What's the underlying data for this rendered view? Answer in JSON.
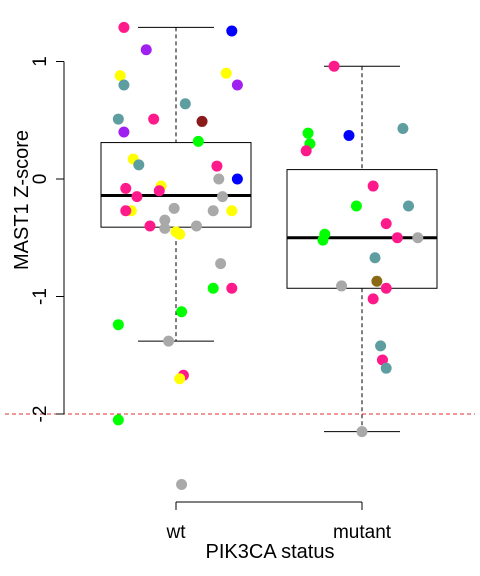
{
  "chart_data": {
    "type": "box",
    "xlabel": "PIK3CA status",
    "ylabel": "MAST1 Z-score",
    "categories": [
      "wt",
      "mutant"
    ],
    "yticks": [
      1,
      0,
      -1,
      -2
    ],
    "ytick_labels": [
      "1",
      "0",
      "-1",
      "-2"
    ],
    "ylim": [
      -2.6,
      1.4
    ],
    "reference_line": {
      "y": -2,
      "color": "#e03030",
      "style": "dashed"
    },
    "boxes": [
      {
        "category": "wt",
        "whisker_low": -1.38,
        "q1": -0.41,
        "median": -0.14,
        "q3": 0.31,
        "whisker_high": 1.29
      },
      {
        "category": "mutant",
        "whisker_low": -2.15,
        "q1": -0.93,
        "median": -0.5,
        "q3": 0.08,
        "whisker_high": 0.96
      }
    ],
    "points": [
      {
        "group": "wt",
        "x": 0.72,
        "y": 1.29,
        "color": "#ff1a8c"
      },
      {
        "group": "wt",
        "x": 1.3,
        "y": 1.26,
        "color": "#0000ff"
      },
      {
        "group": "wt",
        "x": 0.84,
        "y": 1.1,
        "color": "#a020f0"
      },
      {
        "group": "wt",
        "x": 0.7,
        "y": 0.88,
        "color": "#ffff00"
      },
      {
        "group": "wt",
        "x": 1.27,
        "y": 0.9,
        "color": "#ffff00"
      },
      {
        "group": "wt",
        "x": 0.72,
        "y": 0.8,
        "color": "#5f9ea0"
      },
      {
        "group": "wt",
        "x": 1.33,
        "y": 0.8,
        "color": "#a020f0"
      },
      {
        "group": "wt",
        "x": 1.05,
        "y": 0.64,
        "color": "#5f9ea0"
      },
      {
        "group": "wt",
        "x": 0.69,
        "y": 0.51,
        "color": "#5f9ea0"
      },
      {
        "group": "wt",
        "x": 0.88,
        "y": 0.51,
        "color": "#ff1a8c"
      },
      {
        "group": "wt",
        "x": 1.14,
        "y": 0.49,
        "color": "#8b1a1a"
      },
      {
        "group": "wt",
        "x": 0.72,
        "y": 0.4,
        "color": "#a020f0"
      },
      {
        "group": "wt",
        "x": 1.12,
        "y": 0.32,
        "color": "#00ff00"
      },
      {
        "group": "wt",
        "x": 0.77,
        "y": 0.17,
        "color": "#ffff00"
      },
      {
        "group": "wt",
        "x": 0.8,
        "y": 0.12,
        "color": "#5f9ea0"
      },
      {
        "group": "wt",
        "x": 1.22,
        "y": 0.11,
        "color": "#ff1a8c"
      },
      {
        "group": "wt",
        "x": 1.33,
        "y": 0.0,
        "color": "#0000ff"
      },
      {
        "group": "wt",
        "x": 1.23,
        "y": 0.0,
        "color": "#a9a9a9"
      },
      {
        "group": "wt",
        "x": 0.73,
        "y": -0.08,
        "color": "#ff1a8c"
      },
      {
        "group": "wt",
        "x": 0.92,
        "y": -0.06,
        "color": "#ffff00"
      },
      {
        "group": "wt",
        "x": 0.91,
        "y": -0.1,
        "color": "#ff1a8c"
      },
      {
        "group": "wt",
        "x": 0.79,
        "y": -0.15,
        "color": "#ff1a8c"
      },
      {
        "group": "wt",
        "x": 1.25,
        "y": -0.15,
        "color": "#a9a9a9"
      },
      {
        "group": "wt",
        "x": 0.76,
        "y": -0.27,
        "color": "#ffff00"
      },
      {
        "group": "wt",
        "x": 0.73,
        "y": -0.27,
        "color": "#ff1a8c"
      },
      {
        "group": "wt",
        "x": 0.99,
        "y": -0.25,
        "color": "#a9a9a9"
      },
      {
        "group": "wt",
        "x": 1.2,
        "y": -0.27,
        "color": "#a9a9a9"
      },
      {
        "group": "wt",
        "x": 1.3,
        "y": -0.27,
        "color": "#ffff00"
      },
      {
        "group": "wt",
        "x": 0.94,
        "y": -0.35,
        "color": "#a9a9a9"
      },
      {
        "group": "wt",
        "x": 0.86,
        "y": -0.4,
        "color": "#ff1a8c"
      },
      {
        "group": "wt",
        "x": 0.94,
        "y": -0.42,
        "color": "#a9a9a9"
      },
      {
        "group": "wt",
        "x": 1.0,
        "y": -0.45,
        "color": "#ffff00"
      },
      {
        "group": "wt",
        "x": 1.02,
        "y": -0.47,
        "color": "#ffff00"
      },
      {
        "group": "wt",
        "x": 1.11,
        "y": -0.4,
        "color": "#a9a9a9"
      },
      {
        "group": "wt",
        "x": 1.24,
        "y": -0.72,
        "color": "#a9a9a9"
      },
      {
        "group": "wt",
        "x": 1.2,
        "y": -0.93,
        "color": "#00ff00"
      },
      {
        "group": "wt",
        "x": 1.3,
        "y": -0.93,
        "color": "#ff1a8c"
      },
      {
        "group": "wt",
        "x": 1.03,
        "y": -1.13,
        "color": "#00ff00"
      },
      {
        "group": "wt",
        "x": 0.69,
        "y": -1.24,
        "color": "#00ff00"
      },
      {
        "group": "wt",
        "x": 0.96,
        "y": -1.38,
        "color": "#a9a9a9"
      },
      {
        "group": "wt",
        "x": 1.04,
        "y": -1.67,
        "color": "#ff1a8c"
      },
      {
        "group": "wt",
        "x": 1.02,
        "y": -1.7,
        "color": "#ffff00"
      },
      {
        "group": "wt",
        "x": 0.69,
        "y": -2.05,
        "color": "#00ff00"
      },
      {
        "group": "wt",
        "x": 1.03,
        "y": -2.6,
        "color": "#a9a9a9"
      },
      {
        "group": "mutant",
        "x": 1.85,
        "y": 0.96,
        "color": "#ff1a8c"
      },
      {
        "group": "mutant",
        "x": 2.22,
        "y": 0.43,
        "color": "#5f9ea0"
      },
      {
        "group": "mutant",
        "x": 1.71,
        "y": 0.39,
        "color": "#00ff00"
      },
      {
        "group": "mutant",
        "x": 1.93,
        "y": 0.37,
        "color": "#0000ff"
      },
      {
        "group": "mutant",
        "x": 1.72,
        "y": 0.3,
        "color": "#00ff00"
      },
      {
        "group": "mutant",
        "x": 1.7,
        "y": 0.24,
        "color": "#ff1a8c"
      },
      {
        "group": "mutant",
        "x": 2.06,
        "y": -0.06,
        "color": "#ff1a8c"
      },
      {
        "group": "mutant",
        "x": 1.97,
        "y": -0.23,
        "color": "#00ff00"
      },
      {
        "group": "mutant",
        "x": 2.25,
        "y": -0.23,
        "color": "#5f9ea0"
      },
      {
        "group": "mutant",
        "x": 2.13,
        "y": -0.38,
        "color": "#ff1a8c"
      },
      {
        "group": "mutant",
        "x": 1.8,
        "y": -0.47,
        "color": "#00ff00"
      },
      {
        "group": "mutant",
        "x": 1.79,
        "y": -0.52,
        "color": "#00ff00"
      },
      {
        "group": "mutant",
        "x": 2.19,
        "y": -0.5,
        "color": "#ff1a8c"
      },
      {
        "group": "mutant",
        "x": 2.3,
        "y": -0.5,
        "color": "#a9a9a9"
      },
      {
        "group": "mutant",
        "x": 2.07,
        "y": -0.67,
        "color": "#5f9ea0"
      },
      {
        "group": "mutant",
        "x": 2.08,
        "y": -0.87,
        "color": "#8b6914"
      },
      {
        "group": "mutant",
        "x": 1.89,
        "y": -0.91,
        "color": "#a9a9a9"
      },
      {
        "group": "mutant",
        "x": 2.13,
        "y": -0.93,
        "color": "#ff1a8c"
      },
      {
        "group": "mutant",
        "x": 2.06,
        "y": -1.02,
        "color": "#ff1a8c"
      },
      {
        "group": "mutant",
        "x": 2.1,
        "y": -1.42,
        "color": "#5f9ea0"
      },
      {
        "group": "mutant",
        "x": 2.11,
        "y": -1.54,
        "color": "#ff1a8c"
      },
      {
        "group": "mutant",
        "x": 2.13,
        "y": -1.61,
        "color": "#5f9ea0"
      },
      {
        "group": "mutant",
        "x": 2.0,
        "y": -2.15,
        "color": "#a9a9a9"
      }
    ],
    "grid": false,
    "legend": "none"
  }
}
